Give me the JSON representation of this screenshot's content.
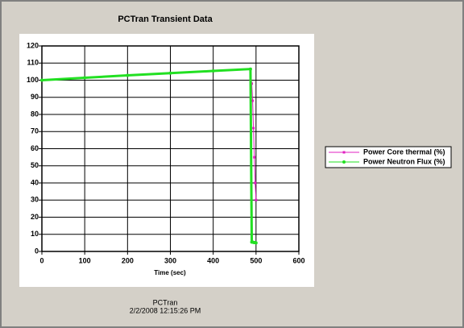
{
  "chart_data": {
    "type": "line",
    "title": "PCTran Transient Data",
    "x_label": "Time (sec)",
    "annotations": [
      "PCTran",
      "2/2/2008 12:15:26 PM"
    ],
    "x": [
      0,
      100,
      200,
      300,
      400,
      487,
      490,
      492,
      494,
      496,
      498,
      500
    ],
    "series": [
      {
        "name": "Power Core thermal (%)",
        "color": "#e020c0",
        "values": [
          100,
          101.4,
          102.8,
          104.1,
          105.4,
          106.5,
          98,
          88,
          72,
          55,
          40,
          30
        ]
      },
      {
        "name": "Power Neutron Flux (%)",
        "color": "#22e022",
        "values": [
          100,
          101.4,
          102.8,
          104.1,
          105.4,
          106.5,
          5.5,
          5.5,
          5.3,
          5.2,
          5.2,
          5.0
        ]
      }
    ],
    "xlim": [
      0,
      600
    ],
    "xticks": [
      0,
      100,
      200,
      300,
      400,
      500,
      600
    ],
    "ylim": [
      0,
      120
    ],
    "yticks": [
      0,
      10,
      20,
      30,
      40,
      50,
      60,
      70,
      80,
      90,
      100,
      110,
      120
    ],
    "grid": true,
    "legend": "right"
  }
}
